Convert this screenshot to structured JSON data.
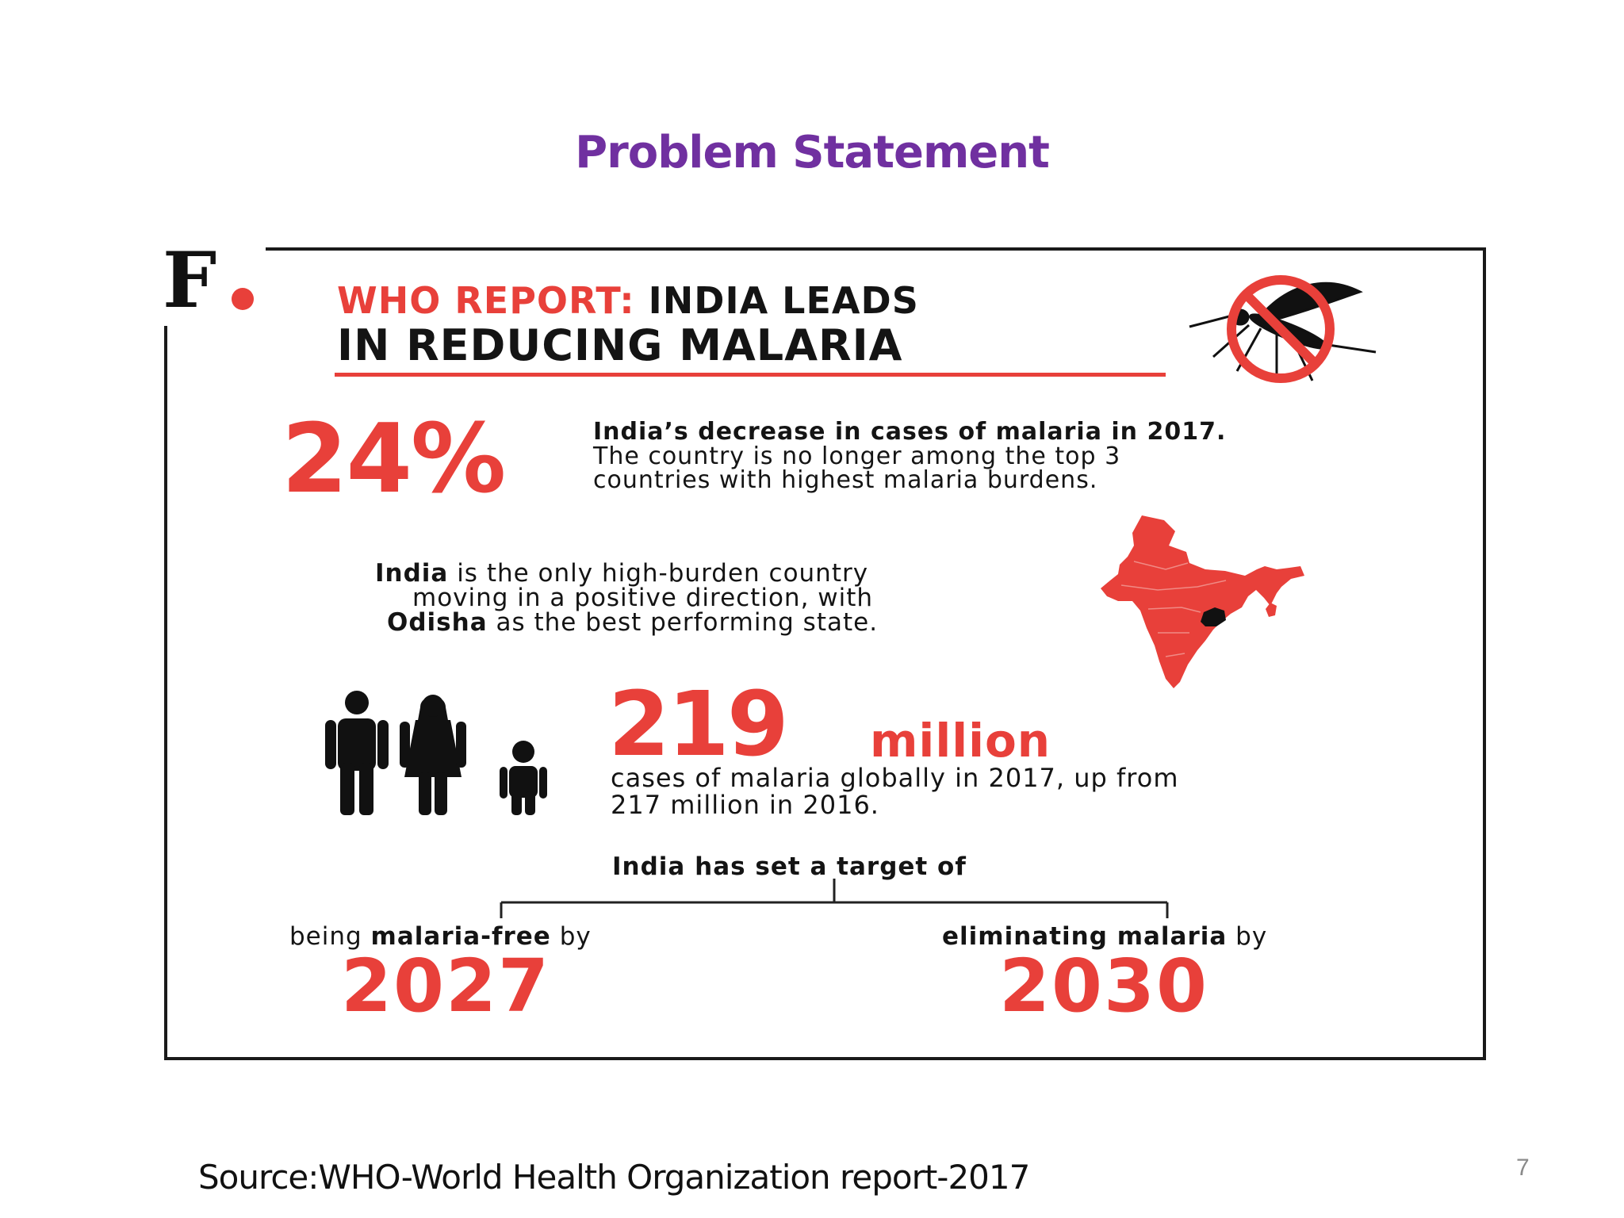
{
  "slide": {
    "title": "Problem Statement",
    "source": "Source:WHO-World Health Organization report-2017",
    "page_number": "7"
  },
  "infographic": {
    "logo": "F",
    "headline_red": "WHO REPORT:",
    "headline_dark": "INDIA LEADS",
    "headline_line2": "IN REDUCING MALARIA",
    "stat_decrease": {
      "value": "24%",
      "line1": "India’s decrease in cases of malaria in 2017.",
      "line2": "The country is no longer among the top 3",
      "line3": "countries with highest malaria burdens."
    },
    "india_statement": {
      "bold1": "India",
      "text1": " is the only high-burden country",
      "line2": "moving in a positive direction, with",
      "bold3": "Odisha",
      "text3": " as the best performing state."
    },
    "stat_global": {
      "value": "219",
      "unit": "million",
      "line1": "cases of malaria globally in 2017, up from",
      "line2": "217 million in 2016."
    },
    "target": {
      "heading": "India has set a target of",
      "left_pre": "being ",
      "left_bold": "malaria-free",
      "left_post": " by",
      "left_year": "2027",
      "right_bold": "eliminating malaria",
      "right_post": " by",
      "right_year": "2030"
    },
    "colors": {
      "accent": "#e8403a",
      "title": "#7030A0",
      "dark": "#141414"
    },
    "icons": [
      "no-mosquito-icon",
      "india-map-icon",
      "family-icon"
    ]
  }
}
